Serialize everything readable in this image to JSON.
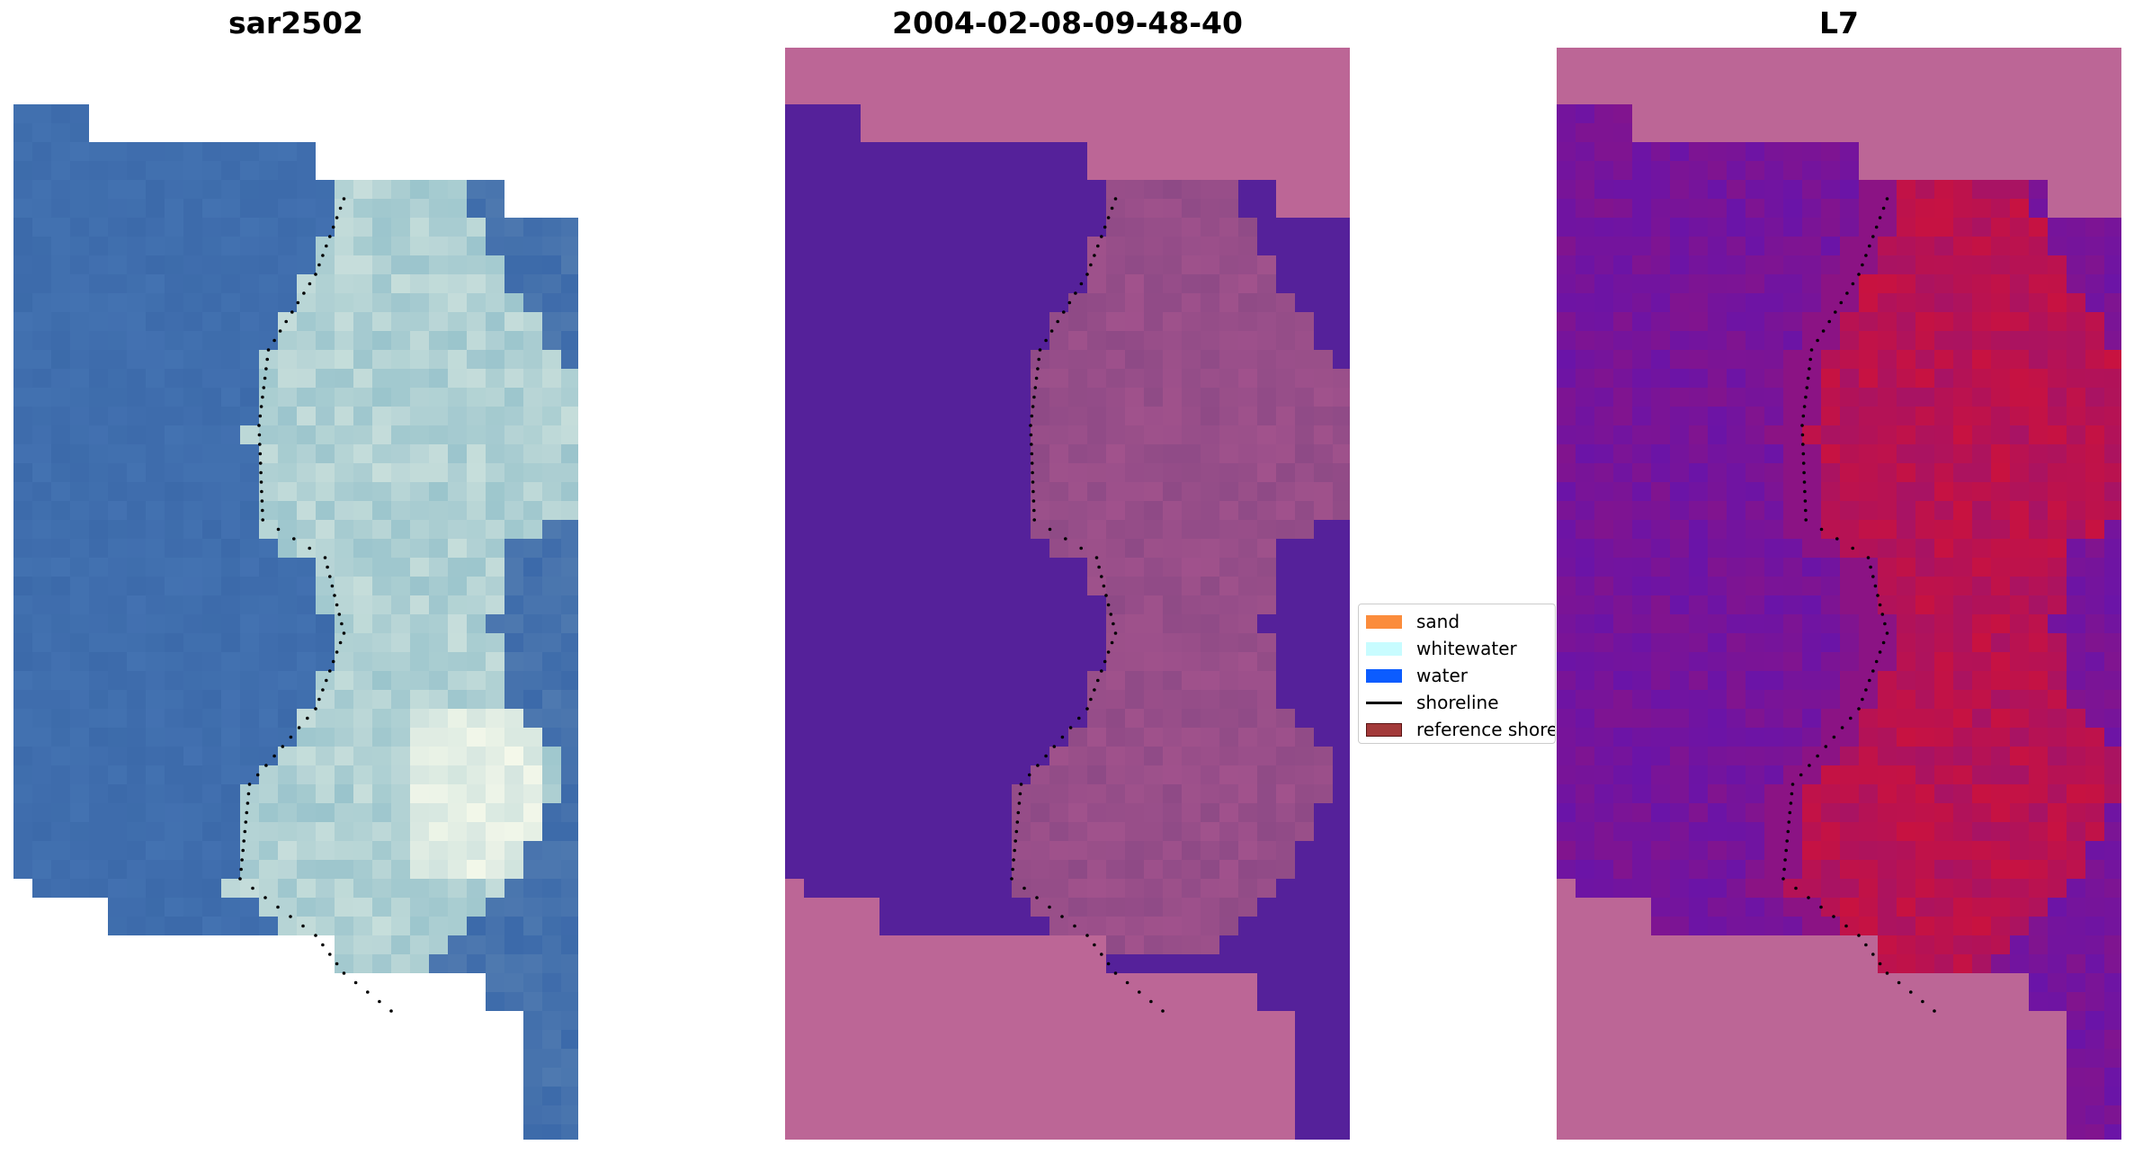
{
  "panels": [
    {
      "title": "sar2502",
      "kind": "rgb"
    },
    {
      "title": "2004-02-08-09-48-40",
      "kind": "classified"
    },
    {
      "title": "L7",
      "kind": "index"
    }
  ],
  "legend": {
    "items": [
      {
        "label": "sand",
        "color": "#fb8c3c",
        "type": "patch"
      },
      {
        "label": "whitewater",
        "color": "#c8fcff",
        "type": "patch"
      },
      {
        "label": "water",
        "color": "#0b5cff",
        "type": "patch"
      },
      {
        "label": "shoreline",
        "color": "#000000",
        "type": "line"
      },
      {
        "label": "reference shoreline",
        "color": "#a33a3a",
        "type": "patch"
      }
    ]
  },
  "colors": {
    "rgb_water": "#3c6aaa",
    "rgb_land": "#9ac4cc",
    "rgb_bright": "#f4f8ea",
    "nodata_overlay": "#bc6696",
    "classified_water": "#55219a",
    "classified_land": "#8e4a86",
    "index_low": "#6a14a8",
    "index_high": "#c81240"
  }
}
